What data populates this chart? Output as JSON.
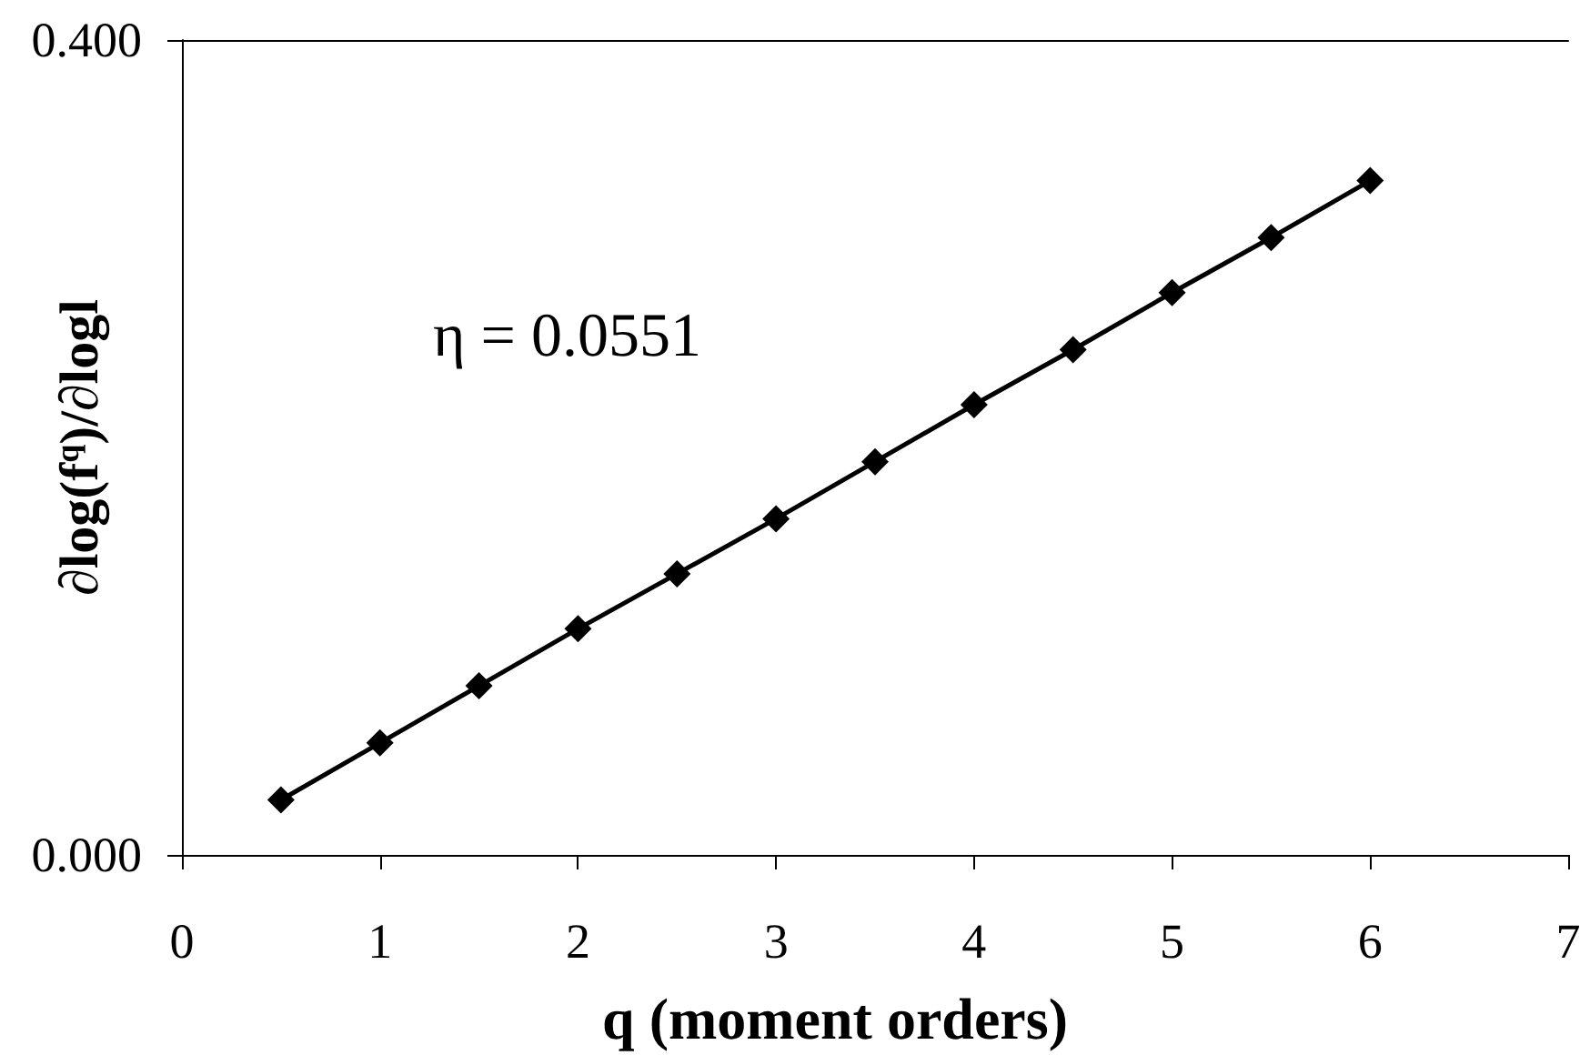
{
  "chart_data": {
    "type": "line",
    "xlabel": "q (moment orders)",
    "ylabel": "∂log(f$^{q}$)/∂logl",
    "x": [
      0.5,
      1,
      1.5,
      2,
      2.5,
      3,
      3.5,
      4,
      4.5,
      5,
      5.5,
      6
    ],
    "series": [
      {
        "color": "#000000",
        "values": [
          0.027,
          0.055,
          0.083,
          0.111,
          0.138,
          0.165,
          0.193,
          0.221,
          0.248,
          0.276,
          0.303,
          0.331
        ]
      }
    ],
    "xlim": [
      0,
      7
    ],
    "xticks": [
      0,
      1,
      2,
      3,
      4,
      5,
      6,
      7
    ],
    "ylim": [
      0,
      0.4
    ],
    "yticks": [
      {
        "value": 0,
        "label": "0.000"
      },
      {
        "value": 0.4,
        "label": "0.400"
      }
    ],
    "marker": "diamond",
    "line_style": "solid",
    "annotations": [
      "η = 0.0551"
    ]
  }
}
